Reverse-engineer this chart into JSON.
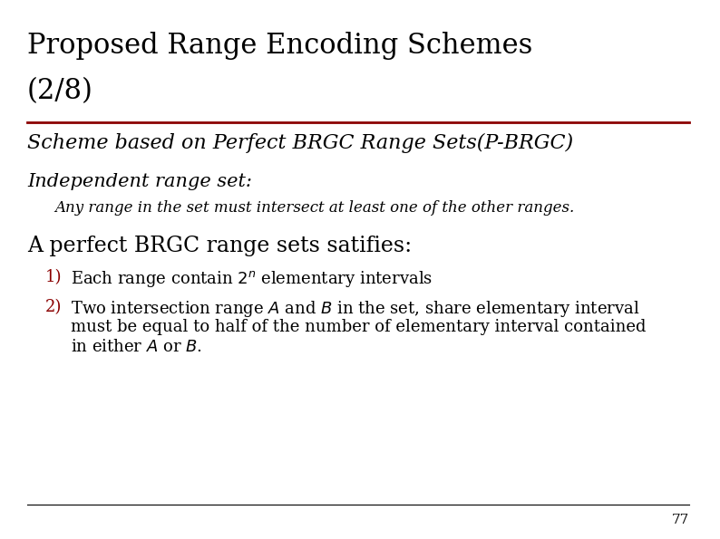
{
  "title_line1": "Proposed Range Encoding Schemes",
  "title_line2": "(2/8)",
  "line_color": "#8B0000",
  "subtitle": "Scheme based on Perfect BRGC Range Sets(P-BRGC)",
  "indent1_label": "Independent range set:",
  "indent1_text": "Any range in the set must intersect at least one of the other ranges.",
  "heading2": "A perfect BRGC range sets satifies:",
  "item1_num": "1)",
  "item1_text_before": "Each range contain ",
  "item1_superscript": "n",
  "item1_base": "2",
  "item1_text_after": " elementary intervals",
  "item2_num": "2)",
  "item2_line1_pre": "Two intersection range ",
  "item2_A": "A",
  "item2_and": " and ",
  "item2_B": "B",
  "item2_rest1": " in the set, share elementary interval",
  "item2_line2": "must be equal to half of the number of elementary interval contained",
  "item2_line3_pre": "in either ",
  "item2_A2": "A",
  "item2_or": " or ",
  "item2_B2": "B",
  "item2_period": ".",
  "footer_line_color": "#000000",
  "page_number": "77",
  "bg_color": "#ffffff",
  "text_color": "#000000",
  "red_color": "#8B0000",
  "title_fontsize": 22,
  "subtitle_fontsize": 16,
  "indent_label_fontsize": 15,
  "indent_text_fontsize": 12,
  "heading2_fontsize": 17,
  "body_fontsize": 13
}
